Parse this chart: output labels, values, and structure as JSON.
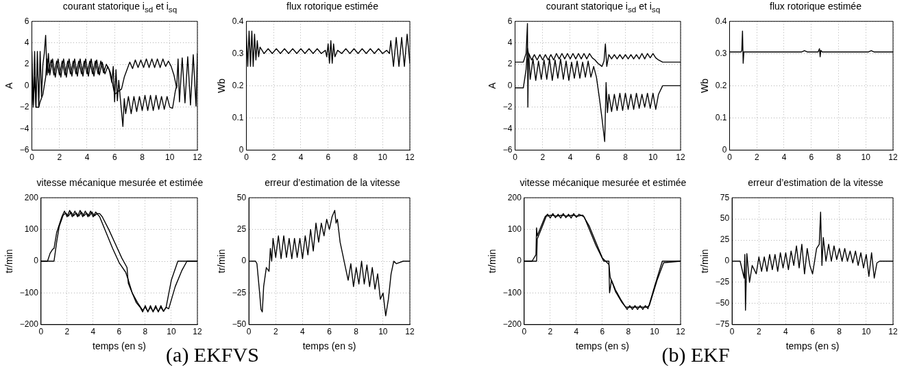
{
  "chart_data": [
    {
      "type": "line",
      "title": "courant statorique i$_{sd}$ et i$_{sq}$",
      "ylabel": "A",
      "xlim": [
        0,
        12
      ],
      "xticks": [
        0,
        2,
        4,
        6,
        8,
        10,
        12
      ],
      "ylim": [
        -6,
        6
      ],
      "yticks": [
        -6,
        -4,
        -2,
        0,
        2,
        4,
        6
      ],
      "grid": true,
      "series": [
        {
          "color": "#000000",
          "x": [
            0,
            0.1,
            0.2,
            0.3,
            0.4,
            0.5,
            0.6,
            0.7,
            0.8,
            0.9,
            1.0,
            1.1,
            1.2,
            1.3,
            1.5,
            1.7,
            1.9,
            2.1,
            2.3,
            2.5,
            2.7,
            2.9,
            3.1,
            3.3,
            3.5,
            3.7,
            3.9,
            4.1,
            4.3,
            4.5,
            4.7,
            4.9,
            5.1,
            5.3,
            5.5,
            5.7,
            6.0,
            6.3,
            6.5,
            6.7,
            6.9,
            7.1,
            7.3,
            7.5,
            7.7,
            7.9,
            8.1,
            8.3,
            8.5,
            8.7,
            8.9,
            9.1,
            9.3,
            9.5,
            9.7,
            9.9,
            10.1,
            10.3,
            10.5,
            10.6,
            10.7,
            10.9,
            11.1,
            11.3,
            11.5,
            11.7,
            11.9,
            12
          ],
          "values": [
            3.2,
            -2,
            3.2,
            -2,
            3.2,
            -2,
            3.2,
            -1,
            2,
            3,
            4.7,
            1,
            3,
            1,
            2.5,
            0.8,
            2.5,
            0.8,
            2.5,
            0.8,
            2.5,
            0.9,
            2.5,
            0.9,
            2.5,
            0.9,
            2.5,
            0.9,
            2.5,
            0.9,
            2.4,
            1,
            2.2,
            1.1,
            1.8,
            1.2,
            -0.8,
            -0.5,
            -0.3,
            0.8,
            1.5,
            2.2,
            1.6,
            2.4,
            1.7,
            2.4,
            1.7,
            2.5,
            1.7,
            2.5,
            1.7,
            2.5,
            1.7,
            2.5,
            1.8,
            2.3,
            1.8,
            1,
            -0.2,
            2.5,
            -1.5,
            2.6,
            -1.6,
            2.7,
            -1.8,
            2.9,
            -1.9,
            3
          ]
        },
        {
          "color": "#000000",
          "x": [
            0,
            0.1,
            0.2,
            0.3,
            0.5,
            0.6,
            0.8,
            0.9,
            1.0,
            1.1,
            1.2,
            1.4,
            1.6,
            1.8,
            2.0,
            2.2,
            2.4,
            2.6,
            2.8,
            3.0,
            3.2,
            3.4,
            3.6,
            3.8,
            4.0,
            4.2,
            4.4,
            4.6,
            4.8,
            5.0,
            5.2,
            5.4,
            5.6,
            5.8,
            5.9,
            6.0,
            6.1,
            6.2,
            6.3,
            6.4,
            6.6,
            6.7,
            6.8,
            7.0,
            7.2,
            7.4,
            7.6,
            7.8,
            8.0,
            8.2,
            8.4,
            8.6,
            8.8,
            9.0,
            9.2,
            9.4,
            9.6,
            9.8,
            10.0,
            10.2,
            10.4,
            10.5
          ],
          "values": [
            0.5,
            -1.8,
            0.8,
            -2,
            -2,
            -1.5,
            -0.8,
            0,
            0.8,
            2.5,
            1.2,
            2.4,
            1,
            2.3,
            1,
            2.3,
            1,
            2.3,
            1.1,
            2.3,
            1.1,
            2.3,
            1.1,
            2.3,
            1.1,
            2.3,
            1.1,
            2.3,
            1.1,
            2.3,
            1.2,
            2,
            1.5,
            0.3,
            1.8,
            -1.5,
            1.5,
            -1.4,
            0.5,
            -1,
            -3.8,
            -1.2,
            -2.6,
            -1,
            -2.6,
            -1,
            -2.4,
            -1,
            -2.3,
            -0.9,
            -2.3,
            -0.9,
            -2.3,
            -0.9,
            -2.2,
            -1,
            -2.2,
            -1,
            -2,
            -2.1,
            -0.5,
            0
          ]
        }
      ]
    },
    {
      "type": "line",
      "title": "flux rotorique estimée",
      "ylabel": "Wb",
      "xlim": [
        0,
        12
      ],
      "xticks": [
        0,
        2,
        4,
        6,
        8,
        10,
        12
      ],
      "ylim": [
        0,
        0.4
      ],
      "yticks": [
        0,
        0.1,
        0.2,
        0.3,
        0.4
      ],
      "grid": true,
      "series": [
        {
          "color": "#000000",
          "x": [
            0,
            0.1,
            0.2,
            0.3,
            0.4,
            0.5,
            0.6,
            0.7,
            0.8,
            0.9,
            1.0,
            1.3,
            1.6,
            1.9,
            2.2,
            2.5,
            2.8,
            3.1,
            3.4,
            3.7,
            4.0,
            4.3,
            4.6,
            4.9,
            5.2,
            5.5,
            5.8,
            5.9,
            6.0,
            6.1,
            6.2,
            6.3,
            6.4,
            6.5,
            6.7,
            7.0,
            7.3,
            7.6,
            7.9,
            8.2,
            8.5,
            8.8,
            9.1,
            9.4,
            9.7,
            10.0,
            10.3,
            10.5,
            10.6,
            10.8,
            11.0,
            11.2,
            11.4,
            11.6,
            11.8,
            12
          ],
          "values": [
            0.36,
            0.26,
            0.37,
            0.26,
            0.37,
            0.26,
            0.36,
            0.28,
            0.34,
            0.29,
            0.32,
            0.3,
            0.315,
            0.3,
            0.315,
            0.3,
            0.315,
            0.3,
            0.315,
            0.3,
            0.315,
            0.3,
            0.315,
            0.3,
            0.315,
            0.3,
            0.31,
            0.29,
            0.33,
            0.27,
            0.34,
            0.27,
            0.33,
            0.29,
            0.31,
            0.3,
            0.315,
            0.3,
            0.315,
            0.3,
            0.315,
            0.3,
            0.315,
            0.3,
            0.315,
            0.3,
            0.31,
            0.3,
            0.34,
            0.26,
            0.35,
            0.26,
            0.35,
            0.26,
            0.36,
            0.27
          ]
        }
      ]
    },
    {
      "type": "line",
      "title": "vitesse mécanique mesurée et estimée",
      "xlabel": "temps (en s)",
      "ylabel": "tr/min",
      "xlim": [
        0,
        12
      ],
      "xticks": [
        0,
        2,
        4,
        6,
        8,
        10,
        12
      ],
      "ylim": [
        -200,
        200
      ],
      "yticks": [
        -200,
        -100,
        0,
        100,
        200
      ],
      "grid": true,
      "annotations": [
        "(a) EKFVS"
      ],
      "series": [
        {
          "color": "#000000",
          "x": [
            0,
            0.5,
            0.7,
            0.9,
            1.0,
            1.2,
            1.6,
            1.8,
            2.0,
            2.2,
            2.4,
            2.6,
            2.8,
            3.0,
            3.2,
            3.4,
            3.6,
            3.8,
            4.0,
            4.2,
            4.5,
            5.0,
            5.5,
            6.0,
            6.5,
            6.7,
            7.0,
            7.3,
            7.6,
            7.8,
            8.0,
            8.2,
            8.4,
            8.6,
            8.8,
            9.0,
            9.2,
            9.4,
            9.6,
            10.0,
            10.5,
            12
          ],
          "values": [
            0,
            0,
            25,
            38,
            40,
            90,
            140,
            158,
            140,
            160,
            140,
            158,
            140,
            160,
            140,
            158,
            140,
            158,
            140,
            155,
            140,
            90,
            40,
            -5,
            -35,
            -60,
            -100,
            -130,
            -145,
            -160,
            -140,
            -160,
            -140,
            -160,
            -140,
            -160,
            -140,
            -158,
            -145,
            -60,
            0,
            0
          ]
        },
        {
          "color": "#000000",
          "x": [
            0,
            1.0,
            1.2,
            1.4,
            1.7,
            1.9,
            2.1,
            2.3,
            2.5,
            2.7,
            2.9,
            3.1,
            3.3,
            3.5,
            3.7,
            3.9,
            4.1,
            4.3,
            4.5,
            4.7,
            5.2,
            5.7,
            6.2,
            6.6,
            6.7,
            7.0,
            7.4,
            7.8,
            8.0,
            8.2,
            8.4,
            8.6,
            8.8,
            9.0,
            9.2,
            9.4,
            9.6,
            9.8,
            10.3,
            10.8,
            11.2,
            12
          ],
          "values": [
            0,
            0,
            60,
            110,
            145,
            152,
            142,
            155,
            143,
            152,
            142,
            155,
            143,
            152,
            142,
            155,
            143,
            150,
            150,
            140,
            100,
            55,
            10,
            -20,
            -70,
            -100,
            -130,
            -155,
            -145,
            -158,
            -145,
            -158,
            -145,
            -158,
            -145,
            -158,
            -145,
            -150,
            -80,
            -30,
            0,
            0
          ]
        }
      ]
    },
    {
      "type": "line",
      "title": "erreur d’estimation de la vitesse",
      "xlabel": "temps (en s)",
      "ylabel": "tr/min",
      "xlim": [
        0,
        12
      ],
      "xticks": [
        0,
        2,
        4,
        6,
        8,
        10,
        12
      ],
      "ylim": [
        -50,
        50
      ],
      "yticks": [
        -50,
        -25,
        0,
        25,
        50
      ],
      "grid": true,
      "series": [
        {
          "color": "#000000",
          "x": [
            0,
            0.5,
            0.6,
            0.8,
            0.9,
            1.0,
            1.1,
            1.3,
            1.5,
            1.6,
            1.7,
            1.8,
            2.0,
            2.2,
            2.4,
            2.6,
            2.8,
            3.0,
            3.2,
            3.4,
            3.6,
            3.8,
            4.0,
            4.2,
            4.4,
            4.6,
            4.8,
            5.0,
            5.2,
            5.4,
            5.6,
            5.8,
            6.0,
            6.2,
            6.4,
            6.5,
            6.6,
            6.8,
            7.0,
            7.2,
            7.4,
            7.6,
            7.8,
            8.0,
            8.2,
            8.4,
            8.6,
            8.8,
            9.0,
            9.2,
            9.4,
            9.6,
            9.8,
            10.0,
            10.2,
            10.4,
            10.6,
            10.8,
            11.0,
            11.5,
            12
          ],
          "values": [
            0,
            0,
            -2,
            -25,
            -38,
            -40,
            -20,
            -5,
            -8,
            10,
            0,
            18,
            3,
            20,
            2,
            20,
            3,
            18,
            2,
            18,
            3,
            18,
            2,
            20,
            5,
            25,
            8,
            30,
            15,
            30,
            20,
            33,
            25,
            35,
            40,
            30,
            33,
            15,
            5,
            -5,
            -15,
            -2,
            -20,
            -5,
            -18,
            0,
            -18,
            -3,
            -20,
            -5,
            -22,
            -10,
            -30,
            -25,
            -43,
            -30,
            -10,
            0,
            -2,
            0,
            0
          ]
        }
      ]
    },
    {
      "type": "line",
      "title": "courant statorique i$_{sd}$ et i$_{sq}$",
      "ylabel": "A",
      "xlim": [
        0,
        12
      ],
      "xticks": [
        0,
        2,
        4,
        6,
        8,
        10,
        12
      ],
      "ylim": [
        -6,
        6
      ],
      "yticks": [
        -6,
        -4,
        -2,
        0,
        2,
        4,
        6
      ],
      "grid": true,
      "series": [
        {
          "color": "#000000",
          "x": [
            0,
            0.6,
            0.8,
            0.9,
            0.93,
            0.97,
            1.0,
            1.2,
            1.4,
            1.6,
            1.8,
            2.0,
            2.2,
            2.4,
            2.6,
            2.8,
            3.0,
            3.2,
            3.4,
            3.6,
            3.8,
            4.0,
            4.2,
            4.4,
            4.6,
            4.8,
            5.0,
            5.2,
            5.4,
            5.6,
            5.8,
            6.0,
            6.3,
            6.45,
            6.55,
            6.65,
            6.8,
            7.0,
            7.2,
            7.4,
            7.6,
            7.8,
            8.0,
            8.2,
            8.4,
            8.6,
            8.8,
            9.0,
            9.2,
            9.4,
            9.6,
            9.8,
            10.0,
            10.2,
            10.4,
            10.7,
            12
          ],
          "values": [
            2.2,
            2.2,
            3,
            5.8,
            -2,
            2.5,
            3,
            2.4,
            2.9,
            2.4,
            2.9,
            2.4,
            2.9,
            2.4,
            2.9,
            2.4,
            3,
            2.5,
            3,
            2.5,
            3,
            2.5,
            3,
            2.5,
            3,
            2.5,
            3,
            2.5,
            3,
            2.6,
            2.4,
            2.1,
            1.8,
            2.3,
            3.9,
            1.8,
            2.9,
            2.5,
            2.9,
            2.5,
            2.9,
            2.5,
            2.9,
            2.5,
            2.9,
            2.5,
            2.9,
            2.5,
            3,
            2.5,
            3,
            2.6,
            3,
            2.6,
            2.4,
            2.2,
            2.2
          ]
        },
        {
          "color": "#000000",
          "x": [
            0,
            0.6,
            0.8,
            0.9,
            1.0,
            1.1,
            1.3,
            1.5,
            1.7,
            1.9,
            2.1,
            2.3,
            2.5,
            2.7,
            2.9,
            3.1,
            3.3,
            3.5,
            3.7,
            3.9,
            4.1,
            4.3,
            4.5,
            4.7,
            4.9,
            5.1,
            5.3,
            5.5,
            5.7,
            5.9,
            6.1,
            6.3,
            6.5,
            6.6,
            6.7,
            6.8,
            7.0,
            7.2,
            7.4,
            7.6,
            7.8,
            8.0,
            8.2,
            8.4,
            8.6,
            8.8,
            9.0,
            9.2,
            9.4,
            9.6,
            9.8,
            10.0,
            10.2,
            10.4,
            10.7,
            12
          ],
          "values": [
            -0.2,
            -0.2,
            1.5,
            3.5,
            2.8,
            0.6,
            2.5,
            0.5,
            2.3,
            0.6,
            2.4,
            0.6,
            2.5,
            0.5,
            2.4,
            0.7,
            2.5,
            0.6,
            2.3,
            0.5,
            2.2,
            0.7,
            2.3,
            0.7,
            2.2,
            0.8,
            2.3,
            0.8,
            1.8,
            0.8,
            -1,
            -3,
            -5.2,
            0.3,
            -2.5,
            -0.8,
            -2.4,
            -0.8,
            -2.3,
            -0.7,
            -2.3,
            -0.7,
            -2.2,
            -0.8,
            -2.2,
            -0.7,
            -2.1,
            -0.8,
            -2,
            -0.7,
            -2.1,
            -0.7,
            -2.2,
            -0.8,
            0,
            0
          ]
        }
      ]
    },
    {
      "type": "line",
      "title": "flux rotorique estimée",
      "ylabel": "Wb",
      "xlim": [
        0,
        12
      ],
      "xticks": [
        0,
        2,
        4,
        6,
        8,
        10,
        12
      ],
      "ylim": [
        0,
        0.4
      ],
      "yticks": [
        0,
        0.1,
        0.2,
        0.3,
        0.4
      ],
      "grid": true,
      "series": [
        {
          "color": "#000000",
          "x": [
            0,
            0.85,
            0.9,
            0.95,
            1.0,
            1.05,
            1.2,
            5.3,
            5.5,
            5.7,
            6.5,
            6.6,
            6.65,
            6.7,
            6.8,
            7.0,
            10.2,
            10.4,
            10.6,
            12
          ],
          "values": [
            0.305,
            0.305,
            0.31,
            0.37,
            0.27,
            0.305,
            0.305,
            0.305,
            0.309,
            0.305,
            0.305,
            0.315,
            0.29,
            0.31,
            0.305,
            0.305,
            0.305,
            0.309,
            0.305,
            0.305
          ]
        }
      ]
    },
    {
      "type": "line",
      "title": "vitesse mécanique mesurée et estimée",
      "xlabel": "temps (en s)",
      "ylabel": "tr/min",
      "xlim": [
        0,
        12
      ],
      "xticks": [
        0,
        2,
        4,
        6,
        8,
        10,
        12
      ],
      "ylim": [
        -200,
        200
      ],
      "yticks": [
        -200,
        -100,
        0,
        100,
        200
      ],
      "grid": true,
      "annotations": [
        "(b) EKF"
      ],
      "series": [
        {
          "color": "#000000",
          "x": [
            0,
            0.6,
            0.9,
            0.95,
            1.0,
            1.3,
            1.6,
            1.8,
            2.0,
            2.2,
            2.4,
            2.6,
            2.8,
            3.0,
            3.2,
            3.4,
            3.6,
            3.8,
            4.0,
            4.2,
            4.6,
            5.0,
            5.5,
            6.1,
            6.5,
            6.55,
            6.7,
            7.0,
            7.4,
            7.7,
            7.9,
            8.1,
            8.3,
            8.5,
            8.7,
            8.9,
            9.1,
            9.3,
            9.5,
            10.0,
            10.6,
            12
          ],
          "values": [
            0,
            0,
            20,
            105,
            80,
            110,
            140,
            148,
            136,
            150,
            137,
            148,
            136,
            150,
            137,
            148,
            136,
            150,
            138,
            148,
            140,
            100,
            50,
            0,
            0,
            -100,
            -60,
            -90,
            -120,
            -140,
            -152,
            -140,
            -152,
            -140,
            -152,
            -140,
            -152,
            -140,
            -150,
            -80,
            0,
            0
          ]
        },
        {
          "color": "#000000",
          "x": [
            0,
            0.95,
            1.0,
            1.3,
            1.7,
            2.1,
            2.5,
            2.9,
            3.3,
            3.7,
            4.1,
            4.5,
            5.0,
            5.5,
            6.0,
            6.5,
            6.6,
            7.0,
            7.5,
            7.8,
            8.2,
            8.6,
            9.0,
            9.4,
            9.6,
            10.2,
            10.7,
            12
          ],
          "values": [
            0,
            0,
            70,
            100,
            142,
            145,
            142,
            145,
            142,
            145,
            142,
            145,
            110,
            60,
            10,
            -10,
            -50,
            -95,
            -130,
            -145,
            -145,
            -145,
            -145,
            -145,
            -140,
            -60,
            -5,
            0
          ]
        }
      ]
    },
    {
      "type": "line",
      "title": "erreur d’estimation de la vitesse",
      "xlabel": "temps (en s)",
      "ylabel": "tr/min",
      "xlim": [
        0,
        12
      ],
      "xticks": [
        0,
        2,
        4,
        6,
        8,
        10,
        12
      ],
      "ylim": [
        -75,
        75
      ],
      "yticks": [
        -75,
        -50,
        -25,
        0,
        25,
        50,
        75
      ],
      "grid": true,
      "series": [
        {
          "color": "#000000",
          "x": [
            0,
            0.6,
            0.9,
            0.95,
            1.0,
            1.1,
            1.3,
            1.5,
            1.8,
            2.0,
            2.2,
            2.4,
            2.6,
            2.8,
            3.0,
            3.2,
            3.4,
            3.6,
            3.8,
            4.0,
            4.2,
            4.4,
            4.6,
            4.8,
            5.0,
            5.2,
            5.4,
            5.6,
            5.8,
            6.0,
            6.3,
            6.5,
            6.6,
            6.7,
            6.8,
            7.0,
            7.2,
            7.4,
            7.6,
            7.8,
            8.0,
            8.2,
            8.4,
            8.6,
            8.8,
            9.0,
            9.2,
            9.4,
            9.6,
            9.8,
            10.0,
            10.2,
            10.4,
            10.6,
            10.8,
            11.0,
            12
          ],
          "values": [
            0,
            0,
            -20,
            8,
            -58,
            9,
            -25,
            -5,
            -15,
            5,
            -12,
            5,
            -12,
            8,
            -10,
            8,
            -12,
            10,
            -8,
            10,
            -10,
            12,
            -5,
            18,
            -8,
            20,
            -15,
            15,
            -5,
            -15,
            15,
            20,
            58,
            -5,
            28,
            0,
            20,
            0,
            18,
            2,
            15,
            0,
            15,
            0,
            12,
            -2,
            12,
            -5,
            10,
            -8,
            8,
            -18,
            10,
            -20,
            -2,
            0,
            0
          ]
        }
      ]
    }
  ]
}
